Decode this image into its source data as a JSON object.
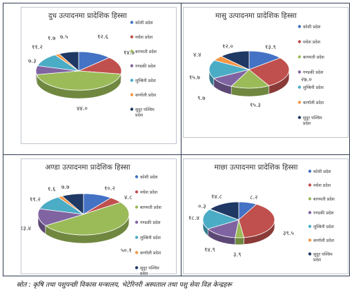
{
  "colors": [
    "#4472c4",
    "#c0504d",
    "#9bbb59",
    "#8064a2",
    "#4bacc6",
    "#f79646",
    "#1f3864"
  ],
  "chart_data": [
    {
      "type": "pie",
      "title": "दुध उत्पादनमा प्रादेशिक हिस्सा",
      "legend": "right",
      "categories": [
        "कोशी प्रदेश",
        "मधेश प्रदेश",
        "बागमती प्रदेश",
        "गण्डकी प्रदेश",
        "लुम्बिनी प्रदेश",
        "कर्णाली प्रदेश",
        "सुदूर पश्चिम प्रदेश"
      ],
      "values": [
        12.6,
        14.7,
        44.0,
        7.3,
        11.2,
        1.7,
        7.5
      ],
      "value_labels": [
        "१२.६",
        "१४.७",
        "४४.०",
        "७.३",
        "११.२",
        "१.७",
        "७.५"
      ]
    },
    {
      "type": "pie",
      "title": "मासु उत्पादनमा प्रादेशिक हिस्सा",
      "legend": "right",
      "categories": [
        "कोशी प्रदेश",
        "मधेश प्रदेश",
        "बागमती प्रदेश",
        "गण्डकी प्रदेश",
        "लुम्बिनी प्रदेश",
        "कर्णाली प्रदेश",
        "सुदूर पश्चिम प्रदेश"
      ],
      "values": [
        13.9,
        27.0,
        15.3,
        9.7,
        15.7,
        4.4,
        12.0
      ],
      "value_labels": [
        "१३.९",
        "२७.०",
        "१५.३",
        "९.७",
        "१५.७",
        "४.४",
        "१२.०"
      ]
    },
    {
      "type": "pie",
      "title": "अण्डा उत्पादनमा प्रादेशिक हिस्सा",
      "legend": "right",
      "categories": [
        "कोशी प्रदेश",
        "मधेश प्रदेश",
        "बागमती प्रदेश",
        "गण्डकी प्रदेश",
        "लुम्बिनी प्रदेश",
        "कर्णाली प्रदेश",
        "सुदूर पश्चिम प्रदेश"
      ],
      "values": [
        10.2,
        4.8,
        50.1,
        13.4,
        11.2,
        1.6,
        7.7
      ],
      "value_labels": [
        "१०.२",
        "४.८",
        "५०.१",
        "१३.४",
        "११.२",
        "१.६",
        "७.७"
      ]
    },
    {
      "type": "pie",
      "title": "माछा उत्पादनमा प्रादेशिक हिस्सा",
      "legend": "right",
      "categories": [
        "कोशी प्रदेश",
        "मधेश प्रदेश",
        "बागमती प्रदेश",
        "गण्डकी प्रदेश",
        "लुम्बिनी प्रदेश",
        "कर्णाली प्रदेश",
        "सुदूर पश्चिम प्रदेश"
      ],
      "values": [
        8.2,
        39.5,
        3.9,
        14.9,
        18.4,
        0.3,
        14.8
      ],
      "value_labels": [
        "८.२",
        "३९.५",
        "३.९",
        "१४.९",
        "१८.४",
        "०.३",
        "१४.८"
      ]
    }
  ],
  "source_note": "स्रोत : कृषि तथा पशुपन्छी विकास मन्त्रालय, भेटेरिनरी अस्पताल तथा पशु सेवा विज्ञ केन्द्रहरू"
}
